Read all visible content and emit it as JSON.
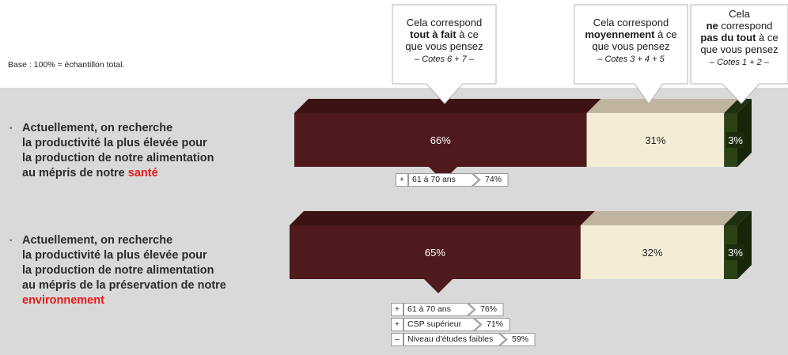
{
  "base_note": "Base : 100% = échantillon total.",
  "colors": {
    "tout_a_fait": "#4e1a1b",
    "moyennement": "#f4ecd7",
    "pas_du_tout": "#2b4216",
    "background_panel": "#d9d9d9",
    "highlight_text": "#e31b1b"
  },
  "callouts": [
    {
      "line1": "Cela correspond",
      "bold": "tout à fait",
      "line2_suffix": " à ce",
      "line3": "que vous pensez",
      "cotes": "– Cotes 6 + 7 –"
    },
    {
      "line1": "Cela correspond",
      "bold": "moyennement",
      "line2_suffix": " à ce",
      "line3": "que vous pensez",
      "cotes": "– Cotes 3 + 4 + 5"
    },
    {
      "line0": "Cela",
      "pre": "ne",
      "pre_suffix": " correspond",
      "bold": "pas du tout",
      "line2_suffix": " à ce",
      "line3": "que vous pensez",
      "cotes": "– Cotes 1 + 2 –"
    }
  ],
  "questions": [
    {
      "line1": "Actuellement, on recherche",
      "line2": "la productivité la plus élevée pour",
      "line3": "la production de notre alimentation",
      "line4_prefix": "au mépris de notre ",
      "highlight": "santé"
    },
    {
      "line1": "Actuellement, on recherche",
      "line2": "la productivité la plus élevée pour",
      "line3": "la production de notre alimentation",
      "line4": "au mépris de la préservation de notre",
      "highlight": "environnement"
    }
  ],
  "chart_data": {
    "type": "bar",
    "orientation": "horizontal-stacked-100",
    "categories": [
      "Actuellement, on recherche la productivité la plus élevée pour la production de notre alimentation au mépris de notre santé",
      "Actuellement, on recherche la productivité la plus élevée pour la production de notre alimentation au mépris de la préservation de notre environnement"
    ],
    "series": [
      {
        "name": "tout à fait",
        "values": [
          66,
          65
        ],
        "labels": [
          "66%",
          "65%"
        ]
      },
      {
        "name": "moyennement",
        "values": [
          31,
          32
        ],
        "labels": [
          "31%",
          "32%"
        ]
      },
      {
        "name": "pas du tout",
        "values": [
          3,
          3
        ],
        "labels": [
          "3%",
          "3%"
        ]
      }
    ],
    "subgroups": [
      [
        {
          "sign": "+",
          "label": "61 à 70 ans",
          "value": "74%"
        }
      ],
      [
        {
          "sign": "+",
          "label": "61 à 70 ans",
          "value": "76%"
        },
        {
          "sign": "+",
          "label": "CSP supérieur",
          "value": "71%"
        },
        {
          "sign": "–",
          "label": "Niveau d'études faibles",
          "value": "59%"
        }
      ]
    ]
  }
}
